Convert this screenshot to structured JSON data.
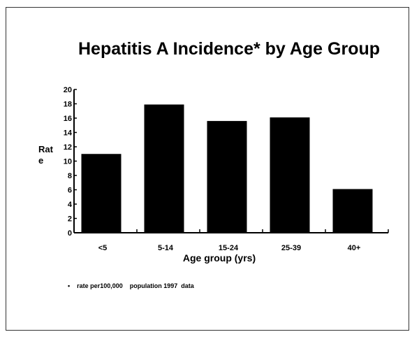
{
  "chart_data": {
    "type": "bar",
    "title": "Hepatitis A Incidence* by Age Group",
    "xlabel": "Age group (yrs)",
    "ylabel": "Rate",
    "categories": [
      "<5",
      "5-14",
      "15-24",
      "25-39",
      "40+"
    ],
    "values": [
      11.0,
      17.9,
      15.6,
      16.1,
      6.1
    ],
    "ylim": [
      0,
      20
    ],
    "yticks": [
      0,
      2,
      4,
      6,
      8,
      10,
      12,
      14,
      16,
      18,
      20
    ],
    "bar_color": "#000000",
    "footnote_bullet": "•",
    "footnote": "rate per100,000    population 1997  data"
  }
}
